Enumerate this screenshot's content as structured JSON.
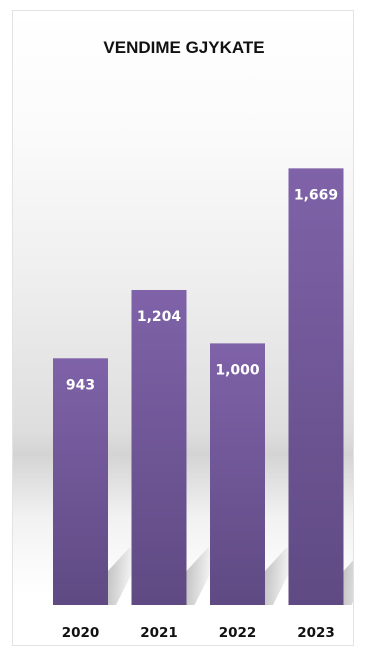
{
  "chart_data": {
    "type": "bar",
    "title": "VENDIME GJYKATE",
    "categories": [
      "2020",
      "2021",
      "2022",
      "2023"
    ],
    "values": [
      943,
      1204,
      1000,
      1669
    ],
    "value_labels": [
      "943",
      "1,204",
      "1,000",
      "1,669"
    ],
    "xlabel": "",
    "ylabel": "",
    "ylim": [
      0,
      1850
    ],
    "grid": false,
    "legend": "none"
  },
  "colors": {
    "bar_top": "#7f62a8",
    "bar_bottom": "#5f4a83"
  }
}
